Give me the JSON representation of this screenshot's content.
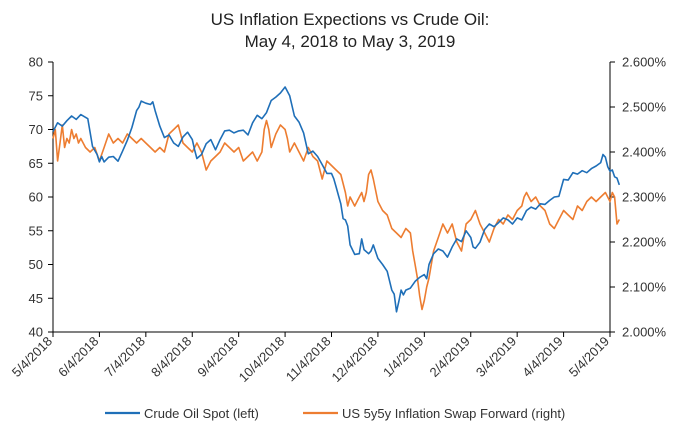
{
  "chart_data": {
    "type": "line",
    "title_line1": "US Inflation Expections vs Crude Oil:",
    "title_line2": "May 4, 2018 to May 3, 2019",
    "x_tick_labels": [
      "5/4/2018",
      "6/4/2018",
      "7/4/2018",
      "8/4/2018",
      "9/4/2018",
      "10/4/2018",
      "11/4/2018",
      "12/4/2018",
      "1/4/2019",
      "2/4/2019",
      "3/4/2019",
      "4/4/2019",
      "5/4/2019"
    ],
    "y_left": {
      "lim": [
        40,
        80
      ],
      "ticks": [
        "40",
        "45",
        "50",
        "55",
        "60",
        "65",
        "70",
        "75",
        "80"
      ],
      "tick_values": [
        40,
        45,
        50,
        55,
        60,
        65,
        70,
        75,
        80
      ]
    },
    "y_right": {
      "lim": [
        2.0,
        2.6
      ],
      "ticks": [
        "2.000%",
        "2.100%",
        "2.200%",
        "2.300%",
        "2.400%",
        "2.500%",
        "2.600%"
      ],
      "tick_values": [
        2.0,
        2.1,
        2.2,
        2.3,
        2.4,
        2.5,
        2.6
      ]
    },
    "legend_position": "bottom",
    "series": [
      {
        "name": "Crude Oil Spot (left)",
        "axis": "left",
        "color": "#1f6fb8",
        "points": [
          [
            0,
            69.7
          ],
          [
            0.1,
            71.0
          ],
          [
            0.2,
            70.5
          ],
          [
            0.3,
            71.3
          ],
          [
            0.4,
            72.0
          ],
          [
            0.5,
            71.5
          ],
          [
            0.6,
            72.2
          ],
          [
            0.75,
            71.6
          ],
          [
            0.85,
            67.5
          ],
          [
            0.95,
            66.3
          ],
          [
            1.0,
            65.2
          ],
          [
            1.05,
            66.0
          ],
          [
            1.1,
            65.2
          ],
          [
            1.2,
            65.9
          ],
          [
            1.3,
            66.0
          ],
          [
            1.4,
            65.3
          ],
          [
            1.5,
            66.8
          ],
          [
            1.6,
            68.4
          ],
          [
            1.7,
            70.3
          ],
          [
            1.8,
            72.8
          ],
          [
            1.85,
            73.3
          ],
          [
            1.9,
            74.2
          ],
          [
            2.0,
            73.9
          ],
          [
            2.1,
            73.7
          ],
          [
            2.15,
            74.1
          ],
          [
            2.2,
            72.8
          ],
          [
            2.3,
            70.5
          ],
          [
            2.4,
            68.8
          ],
          [
            2.5,
            69.2
          ],
          [
            2.6,
            68.0
          ],
          [
            2.7,
            67.5
          ],
          [
            2.8,
            68.9
          ],
          [
            2.9,
            69.6
          ],
          [
            3.0,
            68.5
          ],
          [
            3.05,
            67.0
          ],
          [
            3.1,
            65.7
          ],
          [
            3.2,
            66.3
          ],
          [
            3.3,
            67.9
          ],
          [
            3.4,
            68.5
          ],
          [
            3.5,
            67.0
          ],
          [
            3.6,
            68.5
          ],
          [
            3.7,
            69.8
          ],
          [
            3.8,
            69.9
          ],
          [
            3.9,
            69.5
          ],
          [
            4.0,
            69.8
          ],
          [
            4.1,
            69.9
          ],
          [
            4.2,
            69.2
          ],
          [
            4.3,
            71.0
          ],
          [
            4.4,
            72.1
          ],
          [
            4.5,
            71.6
          ],
          [
            4.6,
            72.5
          ],
          [
            4.7,
            74.3
          ],
          [
            4.8,
            74.8
          ],
          [
            4.9,
            75.4
          ],
          [
            5.0,
            76.3
          ],
          [
            5.1,
            75.0
          ],
          [
            5.2,
            72.0
          ],
          [
            5.3,
            71.1
          ],
          [
            5.4,
            69.5
          ],
          [
            5.5,
            66.4
          ],
          [
            5.6,
            66.8
          ],
          [
            5.7,
            66.0
          ],
          [
            5.8,
            64.8
          ],
          [
            5.9,
            63.5
          ],
          [
            6.0,
            63.5
          ],
          [
            6.05,
            62.7
          ],
          [
            6.1,
            61.5
          ],
          [
            6.15,
            60.2
          ],
          [
            6.2,
            59.0
          ],
          [
            6.25,
            56.8
          ],
          [
            6.3,
            56.6
          ],
          [
            6.35,
            55.7
          ],
          [
            6.4,
            52.9
          ],
          [
            6.5,
            51.5
          ],
          [
            6.6,
            51.6
          ],
          [
            6.65,
            53.8
          ],
          [
            6.7,
            52.2
          ],
          [
            6.8,
            51.6
          ],
          [
            6.85,
            52.0
          ],
          [
            6.9,
            52.9
          ],
          [
            7.0,
            50.9
          ],
          [
            7.1,
            50.0
          ],
          [
            7.2,
            49.0
          ],
          [
            7.3,
            46.2
          ],
          [
            7.35,
            45.6
          ],
          [
            7.4,
            43.0
          ],
          [
            7.45,
            44.5
          ],
          [
            7.5,
            46.2
          ],
          [
            7.55,
            45.5
          ],
          [
            7.6,
            46.2
          ],
          [
            7.7,
            46.5
          ],
          [
            7.8,
            47.5
          ],
          [
            7.9,
            48.1
          ],
          [
            8.0,
            48.5
          ],
          [
            8.05,
            47.9
          ],
          [
            8.1,
            50.0
          ],
          [
            8.2,
            51.6
          ],
          [
            8.3,
            52.3
          ],
          [
            8.4,
            52.0
          ],
          [
            8.5,
            51.1
          ],
          [
            8.6,
            52.6
          ],
          [
            8.7,
            53.8
          ],
          [
            8.8,
            53.4
          ],
          [
            8.9,
            55.0
          ],
          [
            9.0,
            54.0
          ],
          [
            9.05,
            52.6
          ],
          [
            9.1,
            52.4
          ],
          [
            9.2,
            53.3
          ],
          [
            9.3,
            55.2
          ],
          [
            9.4,
            56.0
          ],
          [
            9.5,
            55.6
          ],
          [
            9.6,
            56.2
          ],
          [
            9.7,
            56.9
          ],
          [
            9.8,
            56.6
          ],
          [
            9.9,
            56.0
          ],
          [
            10.0,
            56.9
          ],
          [
            10.1,
            56.6
          ],
          [
            10.2,
            58.0
          ],
          [
            10.3,
            58.5
          ],
          [
            10.4,
            58.2
          ],
          [
            10.5,
            59.0
          ],
          [
            10.6,
            58.9
          ],
          [
            10.7,
            59.5
          ],
          [
            10.8,
            60.0
          ],
          [
            10.9,
            60.1
          ],
          [
            11.0,
            62.6
          ],
          [
            11.1,
            62.5
          ],
          [
            11.2,
            63.6
          ],
          [
            11.3,
            63.4
          ],
          [
            11.4,
            63.9
          ],
          [
            11.5,
            63.6
          ],
          [
            11.6,
            64.2
          ],
          [
            11.7,
            64.6
          ],
          [
            11.8,
            65.1
          ],
          [
            11.85,
            66.3
          ],
          [
            11.9,
            65.9
          ],
          [
            11.95,
            64.5
          ],
          [
            12.0,
            63.8
          ],
          [
            12.05,
            64.0
          ],
          [
            12.1,
            63.0
          ],
          [
            12.15,
            62.8
          ],
          [
            12.2,
            61.8
          ]
        ]
      },
      {
        "name": "US 5y5y Inflation Swap Forward (right)",
        "axis": "right",
        "color": "#ed7d31",
        "points": [
          [
            0,
            2.43
          ],
          [
            0.05,
            2.45
          ],
          [
            0.1,
            2.38
          ],
          [
            0.15,
            2.42
          ],
          [
            0.2,
            2.46
          ],
          [
            0.25,
            2.41
          ],
          [
            0.3,
            2.43
          ],
          [
            0.35,
            2.42
          ],
          [
            0.4,
            2.45
          ],
          [
            0.45,
            2.43
          ],
          [
            0.5,
            2.44
          ],
          [
            0.55,
            2.42
          ],
          [
            0.6,
            2.43
          ],
          [
            0.7,
            2.41
          ],
          [
            0.8,
            2.4
          ],
          [
            0.9,
            2.41
          ],
          [
            1.0,
            2.38
          ],
          [
            1.1,
            2.41
          ],
          [
            1.2,
            2.44
          ],
          [
            1.3,
            2.42
          ],
          [
            1.4,
            2.43
          ],
          [
            1.5,
            2.42
          ],
          [
            1.6,
            2.44
          ],
          [
            1.7,
            2.43
          ],
          [
            1.8,
            2.42
          ],
          [
            1.9,
            2.43
          ],
          [
            2.0,
            2.42
          ],
          [
            2.1,
            2.41
          ],
          [
            2.2,
            2.4
          ],
          [
            2.3,
            2.41
          ],
          [
            2.4,
            2.4
          ],
          [
            2.5,
            2.44
          ],
          [
            2.6,
            2.45
          ],
          [
            2.7,
            2.46
          ],
          [
            2.8,
            2.42
          ],
          [
            2.9,
            2.41
          ],
          [
            3.0,
            2.4
          ],
          [
            3.1,
            2.42
          ],
          [
            3.2,
            2.4
          ],
          [
            3.3,
            2.36
          ],
          [
            3.4,
            2.38
          ],
          [
            3.5,
            2.39
          ],
          [
            3.6,
            2.4
          ],
          [
            3.7,
            2.42
          ],
          [
            3.8,
            2.41
          ],
          [
            3.9,
            2.4
          ],
          [
            4.0,
            2.41
          ],
          [
            4.1,
            2.38
          ],
          [
            4.2,
            2.39
          ],
          [
            4.3,
            2.4
          ],
          [
            4.4,
            2.38
          ],
          [
            4.5,
            2.4
          ],
          [
            4.55,
            2.45
          ],
          [
            4.6,
            2.47
          ],
          [
            4.65,
            2.45
          ],
          [
            4.7,
            2.41
          ],
          [
            4.8,
            2.44
          ],
          [
            4.9,
            2.46
          ],
          [
            5.0,
            2.45
          ],
          [
            5.05,
            2.43
          ],
          [
            5.1,
            2.4
          ],
          [
            5.2,
            2.42
          ],
          [
            5.3,
            2.4
          ],
          [
            5.4,
            2.38
          ],
          [
            5.5,
            2.41
          ],
          [
            5.6,
            2.39
          ],
          [
            5.7,
            2.38
          ],
          [
            5.8,
            2.34
          ],
          [
            5.9,
            2.38
          ],
          [
            6.0,
            2.37
          ],
          [
            6.1,
            2.36
          ],
          [
            6.2,
            2.35
          ],
          [
            6.3,
            2.31
          ],
          [
            6.35,
            2.28
          ],
          [
            6.4,
            2.3
          ],
          [
            6.5,
            2.28
          ],
          [
            6.6,
            2.3
          ],
          [
            6.65,
            2.31
          ],
          [
            6.7,
            2.29
          ],
          [
            6.75,
            2.31
          ],
          [
            6.8,
            2.35
          ],
          [
            6.85,
            2.36
          ],
          [
            6.9,
            2.34
          ],
          [
            7.0,
            2.29
          ],
          [
            7.1,
            2.27
          ],
          [
            7.2,
            2.26
          ],
          [
            7.3,
            2.23
          ],
          [
            7.4,
            2.22
          ],
          [
            7.5,
            2.21
          ],
          [
            7.6,
            2.23
          ],
          [
            7.7,
            2.22
          ],
          [
            7.75,
            2.18
          ],
          [
            7.8,
            2.15
          ],
          [
            7.85,
            2.12
          ],
          [
            7.9,
            2.08
          ],
          [
            7.95,
            2.05
          ],
          [
            8.0,
            2.07
          ],
          [
            8.05,
            2.1
          ],
          [
            8.1,
            2.12
          ],
          [
            8.2,
            2.18
          ],
          [
            8.3,
            2.21
          ],
          [
            8.4,
            2.24
          ],
          [
            8.5,
            2.22
          ],
          [
            8.6,
            2.24
          ],
          [
            8.7,
            2.2
          ],
          [
            8.8,
            2.18
          ],
          [
            8.9,
            2.24
          ],
          [
            9.0,
            2.25
          ],
          [
            9.1,
            2.27
          ],
          [
            9.2,
            2.24
          ],
          [
            9.3,
            2.22
          ],
          [
            9.4,
            2.2
          ],
          [
            9.5,
            2.23
          ],
          [
            9.6,
            2.25
          ],
          [
            9.7,
            2.24
          ],
          [
            9.8,
            2.26
          ],
          [
            9.9,
            2.25
          ],
          [
            10.0,
            2.27
          ],
          [
            10.1,
            2.28
          ],
          [
            10.15,
            2.3
          ],
          [
            10.2,
            2.31
          ],
          [
            10.3,
            2.29
          ],
          [
            10.4,
            2.3
          ],
          [
            10.5,
            2.28
          ],
          [
            10.6,
            2.27
          ],
          [
            10.7,
            2.24
          ],
          [
            10.8,
            2.23
          ],
          [
            10.9,
            2.25
          ],
          [
            11.0,
            2.27
          ],
          [
            11.1,
            2.26
          ],
          [
            11.2,
            2.25
          ],
          [
            11.3,
            2.28
          ],
          [
            11.4,
            2.27
          ],
          [
            11.5,
            2.29
          ],
          [
            11.6,
            2.3
          ],
          [
            11.7,
            2.29
          ],
          [
            11.8,
            2.3
          ],
          [
            11.9,
            2.31
          ],
          [
            12.0,
            2.29
          ],
          [
            12.05,
            2.31
          ],
          [
            12.1,
            2.3
          ],
          [
            12.15,
            2.24
          ],
          [
            12.2,
            2.25
          ]
        ]
      }
    ]
  }
}
